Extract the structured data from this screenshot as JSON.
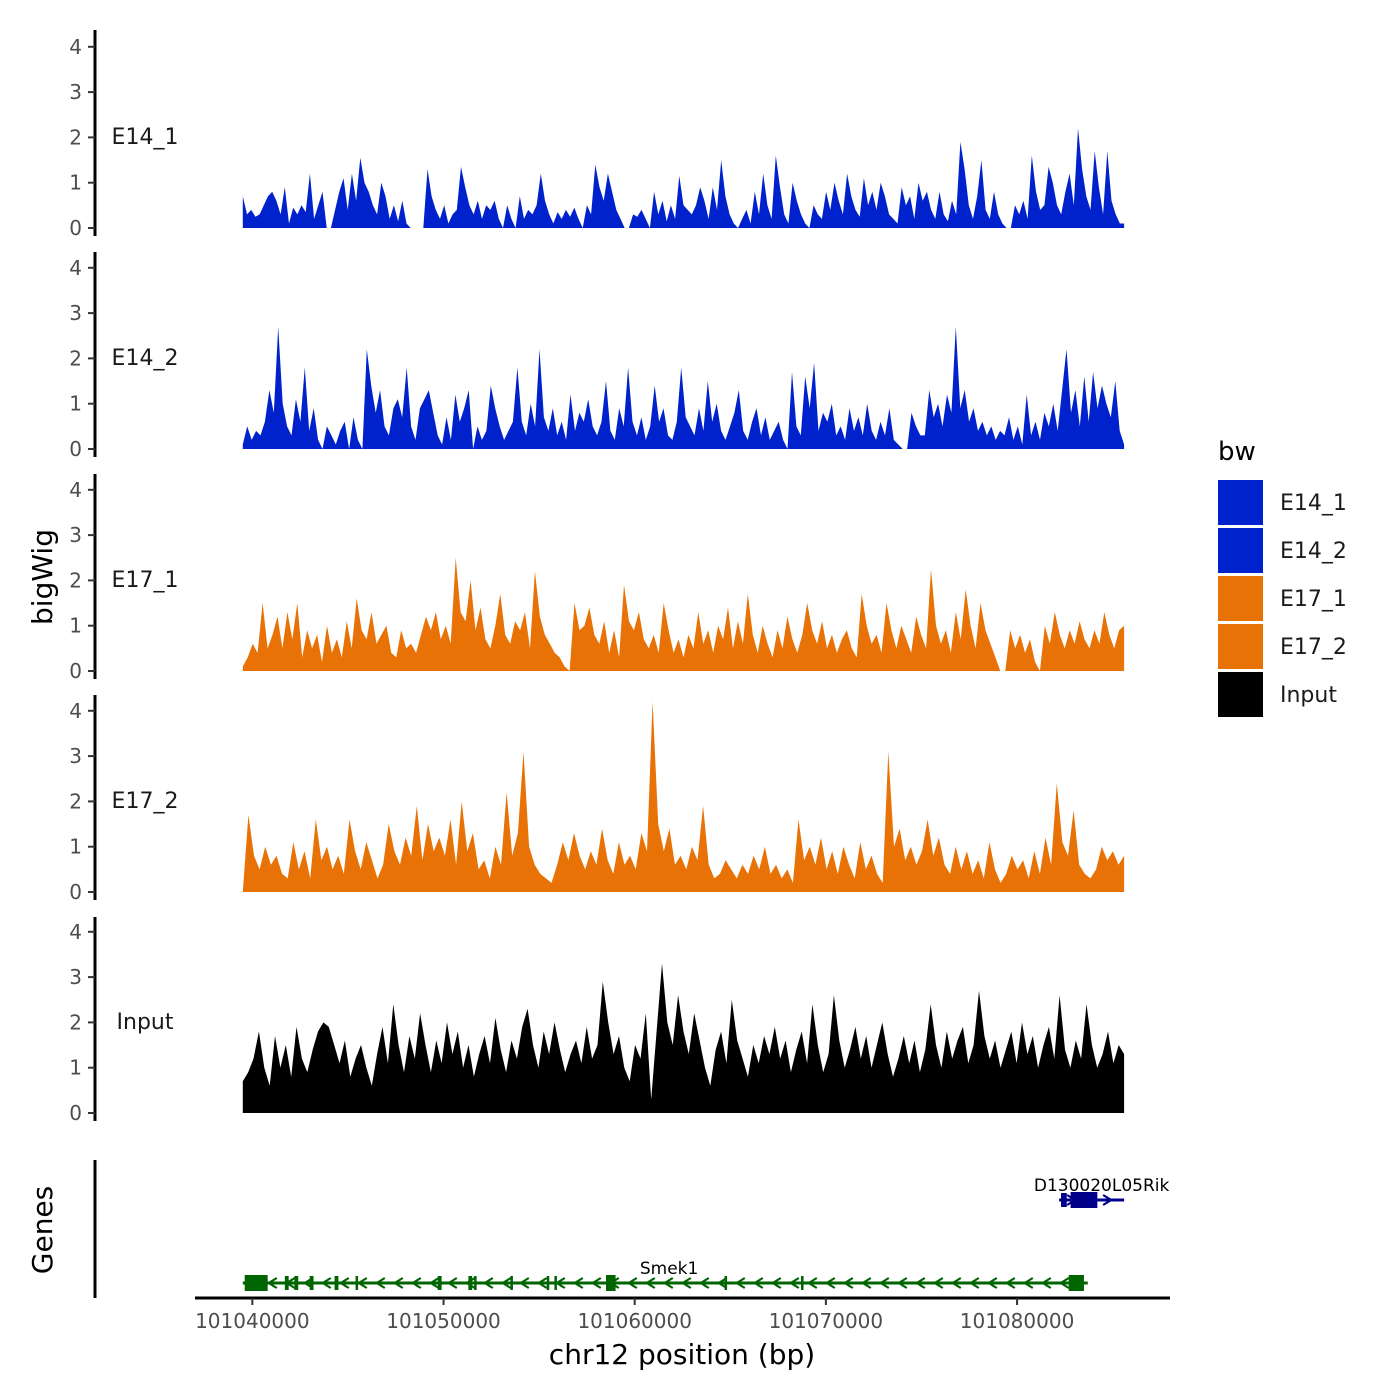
{
  "chart_data": {
    "type": "area",
    "title": "",
    "ylabel": "bigWig",
    "xlabel": "chr12 position (bp)",
    "genes_label": "Genes",
    "xlim": [
      101037000,
      101088000
    ],
    "data_range": [
      101039500,
      101085600
    ],
    "ylim": [
      0,
      4.2
    ],
    "y_ticks": [
      "0",
      "1",
      "2",
      "3",
      "4"
    ],
    "x_ticks": [
      {
        "value": 101040000,
        "label": "101040000"
      },
      {
        "value": 101050000,
        "label": "101050000"
      },
      {
        "value": 101060000,
        "label": "101060000"
      },
      {
        "value": 101070000,
        "label": "101070000"
      },
      {
        "value": 101080000,
        "label": "101080000"
      }
    ],
    "legend": {
      "title": "bw",
      "entries": [
        {
          "label": "E14_1",
          "color": "#0022cc"
        },
        {
          "label": "E14_2",
          "color": "#0022cc"
        },
        {
          "label": "E17_1",
          "color": "#e87205"
        },
        {
          "label": "E17_2",
          "color": "#e87205"
        },
        {
          "label": "Input",
          "color": "#000000"
        }
      ]
    },
    "series": [
      {
        "name": "E14_1",
        "color": "#0022cc",
        "values": [
          0.7,
          0.3,
          0.4,
          0.25,
          0.3,
          0.5,
          0.7,
          0.8,
          0.6,
          0.3,
          0.9,
          0.1,
          0.45,
          0.3,
          0.5,
          0.35,
          1.2,
          0.2,
          0.5,
          0.8,
          0,
          0,
          0.4,
          0.8,
          1.1,
          0.4,
          1.2,
          0.6,
          1.55,
          1.0,
          0.8,
          0.5,
          0.3,
          1.0,
          0.7,
          0.2,
          0.5,
          0.15,
          0.6,
          0.1,
          0,
          0,
          0,
          0,
          1.3,
          0.7,
          0.4,
          0.2,
          0.5,
          0.1,
          0.3,
          0.4,
          1.35,
          0.9,
          0.5,
          0.3,
          0.6,
          0.2,
          0.5,
          0.4,
          0.6,
          0.2,
          0,
          0.5,
          0.2,
          0,
          0.7,
          0.2,
          0.4,
          0.3,
          0.5,
          1.2,
          0.6,
          0.3,
          0.1,
          0.35,
          0.2,
          0.4,
          0.25,
          0.45,
          0.2,
          0,
          0.5,
          0.3,
          1.4,
          0.9,
          0.6,
          1.2,
          0.8,
          0.4,
          0.2,
          0,
          0,
          0.3,
          0.25,
          0.4,
          0.2,
          0,
          0.8,
          0.3,
          0.6,
          0.15,
          0.5,
          0.2,
          1.15,
          0.5,
          0.4,
          0.3,
          0.5,
          0.9,
          0.6,
          0.2,
          0.9,
          0.4,
          1.5,
          0.7,
          0.3,
          0.1,
          0,
          0.2,
          0.4,
          0.1,
          0.8,
          0.3,
          1.2,
          0.5,
          0.2,
          1.6,
          0.9,
          0.3,
          0.1,
          1.0,
          0.6,
          0.3,
          0.1,
          0,
          0.5,
          0.3,
          0.2,
          0.8,
          0.4,
          1.0,
          0.6,
          0.3,
          1.2,
          0.7,
          0.4,
          0.25,
          1.1,
          0.5,
          0.8,
          0.4,
          1.0,
          0.7,
          0.3,
          0.2,
          0.1,
          0.9,
          0.5,
          0.7,
          0.2,
          1.0,
          0.6,
          0.8,
          0.4,
          0.2,
          0.8,
          0.3,
          0.15,
          0.6,
          0.3,
          1.9,
          1.3,
          0.5,
          0.2,
          0.7,
          1.5,
          0.4,
          0.2,
          0.8,
          0.3,
          0.1,
          0,
          0,
          0.5,
          0.3,
          0.6,
          0.2,
          1.6,
          0.8,
          0.4,
          0.5,
          1.35,
          1.0,
          0.5,
          0.3,
          0.8,
          1.2,
          0.5,
          2.2,
          1.3,
          0.7,
          0.4,
          1.7,
          0.9,
          0.3,
          1.7,
          0.6,
          0.3,
          0.1,
          0.1
        ]
      },
      {
        "name": "E14_2",
        "color": "#0022cc",
        "values": [
          0.1,
          0.5,
          0.2,
          0.4,
          0.3,
          0.6,
          1.3,
          0.8,
          2.7,
          1.0,
          0.5,
          0.3,
          1.1,
          0.6,
          1.8,
          0.4,
          0.9,
          0.2,
          0,
          0.5,
          0.3,
          0.1,
          0.4,
          0.6,
          0,
          0.7,
          0.2,
          0,
          2.2,
          1.4,
          0.8,
          1.3,
          0.5,
          0.3,
          0.9,
          1.1,
          0.7,
          1.8,
          0.5,
          0.2,
          0.9,
          1.1,
          1.3,
          0.8,
          0.3,
          0.1,
          0.7,
          0.2,
          1.2,
          0.6,
          0.9,
          1.3,
          0,
          0.5,
          0.2,
          0.4,
          1.4,
          0.9,
          0.5,
          0.2,
          0.4,
          0.6,
          1.8,
          0.6,
          0.3,
          1.0,
          0.5,
          2.2,
          0.7,
          0.4,
          0.9,
          0.3,
          0.6,
          0.2,
          1.2,
          0.4,
          0.8,
          0.6,
          1.1,
          0.5,
          0.3,
          0.6,
          1.5,
          0.4,
          0.2,
          0.9,
          0.5,
          1.8,
          0.6,
          0.3,
          0.7,
          0.2,
          0.5,
          1.4,
          0.6,
          0.9,
          0.3,
          0.2,
          0.6,
          1.8,
          0.7,
          0.5,
          0.3,
          0.9,
          0.4,
          1.5,
          0.6,
          1.0,
          0.4,
          0.2,
          0.5,
          0.8,
          1.3,
          0.4,
          0.2,
          0.6,
          0.9,
          0.3,
          0.7,
          0.2,
          0.4,
          0.6,
          0.2,
          0,
          1.7,
          0.5,
          0.3,
          1.6,
          0.9,
          1.9,
          0.4,
          0.8,
          0.6,
          1.0,
          0.3,
          0.5,
          0.2,
          0.9,
          0.4,
          0.7,
          0.3,
          1.0,
          0.4,
          0.2,
          0.6,
          0.3,
          0.9,
          0.2,
          0.1,
          0,
          0,
          0.8,
          0.5,
          0.3,
          0.3,
          1.3,
          0.7,
          1.0,
          0.5,
          1.2,
          0.8,
          2.7,
          0.9,
          1.3,
          0.6,
          0.9,
          0.4,
          0.6,
          0.3,
          0.5,
          0.2,
          0.4,
          0.3,
          0.7,
          0.2,
          0.5,
          0.1,
          1.2,
          0.3,
          0.6,
          0.2,
          0.8,
          0.5,
          1.0,
          0.4,
          1.3,
          2.2,
          0.8,
          1.3,
          0.5,
          1.6,
          0.6,
          1.7,
          0.9,
          1.4,
          1.0,
          0.7,
          1.5,
          0.4,
          0.1
        ]
      },
      {
        "name": "E17_1",
        "color": "#e87205",
        "values": [
          0.1,
          0.3,
          0.6,
          0.4,
          1.5,
          0.5,
          0.8,
          1.2,
          0.5,
          1.3,
          0.7,
          1.5,
          0.3,
          0.9,
          0.5,
          0.8,
          0.2,
          1.0,
          0.4,
          0.7,
          0.3,
          1.1,
          0.5,
          1.6,
          0.9,
          0.7,
          1.3,
          0.6,
          0.8,
          1.0,
          0.4,
          0.3,
          0.9,
          0.5,
          0.6,
          0.4,
          0.8,
          1.2,
          0.9,
          1.3,
          0.7,
          1.0,
          0.6,
          2.5,
          1.3,
          1.1,
          2.0,
          0.9,
          1.4,
          0.7,
          0.5,
          1.0,
          1.7,
          0.8,
          0.6,
          1.1,
          0.9,
          1.3,
          0.5,
          2.2,
          1.2,
          0.8,
          0.6,
          0.4,
          0.3,
          0.1,
          0,
          1.5,
          0.9,
          1.0,
          1.4,
          0.8,
          0.6,
          1.1,
          0.4,
          0.9,
          0.3,
          1.9,
          1.1,
          0.9,
          1.3,
          0.7,
          0.5,
          0.8,
          0.4,
          1.5,
          0.9,
          0.4,
          0.7,
          0.3,
          0.8,
          0.5,
          1.3,
          0.6,
          0.9,
          0.4,
          1.0,
          0.7,
          1.4,
          0.5,
          1.1,
          0.6,
          1.7,
          0.8,
          0.4,
          1.0,
          0.6,
          0.3,
          0.9,
          0.5,
          1.2,
          0.7,
          0.4,
          0.8,
          1.5,
          0.9,
          0.6,
          1.1,
          0.5,
          0.8,
          0.4,
          0.7,
          0.9,
          0.5,
          0.3,
          1.7,
          1.0,
          0.6,
          0.8,
          0.4,
          1.5,
          0.9,
          0.5,
          1.0,
          0.7,
          0.4,
          1.2,
          0.8,
          0.5,
          2.25,
          1.0,
          0.6,
          0.9,
          0.4,
          1.3,
          0.7,
          1.8,
          1.0,
          0.5,
          1.5,
          0.9,
          0.6,
          0.3,
          0,
          0,
          0.9,
          0.5,
          0.8,
          0.4,
          0.7,
          0.2,
          0,
          1.0,
          0.6,
          1.3,
          0.8,
          0.5,
          0.9,
          0.6,
          1.1,
          0.7,
          0.5,
          0.9,
          0.6,
          1.3,
          0.8,
          0.5,
          0.9,
          1.0
        ]
      },
      {
        "name": "E17_2",
        "color": "#e87205",
        "values": [
          0,
          1.7,
          0.8,
          0.5,
          1.0,
          0.6,
          0.8,
          0.4,
          0.3,
          1.1,
          0.5,
          0.9,
          0.3,
          1.6,
          0.7,
          1.0,
          0.5,
          0.8,
          0.4,
          1.6,
          0.9,
          0.5,
          1.1,
          0.7,
          0.3,
          0.6,
          1.5,
          0.9,
          0.6,
          1.2,
          0.8,
          1.9,
          0.7,
          1.5,
          0.9,
          1.2,
          0.8,
          1.6,
          0.6,
          2.0,
          0.9,
          1.3,
          0.5,
          0.7,
          0.3,
          1.0,
          0.6,
          2.2,
          0.8,
          1.3,
          3.1,
          1.0,
          0.6,
          0.4,
          0.3,
          0.2,
          0.6,
          1.1,
          0.7,
          1.3,
          0.8,
          0.5,
          0.9,
          0.6,
          1.4,
          0.7,
          0.4,
          1.1,
          0.6,
          0.8,
          0.5,
          1.3,
          0.9,
          4.2,
          1.5,
          0.9,
          1.4,
          0.6,
          0.8,
          0.5,
          1.0,
          0.7,
          1.9,
          0.6,
          0.3,
          0.4,
          0.7,
          0.5,
          0.3,
          0.6,
          0.4,
          0.8,
          0.5,
          1.0,
          0.4,
          0.6,
          0.3,
          0.5,
          0.2,
          1.6,
          0.7,
          1.0,
          0.6,
          1.2,
          0.5,
          0.9,
          0.4,
          1.0,
          0.6,
          0.3,
          1.1,
          0.5,
          0.8,
          0.4,
          0.2,
          3.1,
          1.0,
          1.4,
          0.7,
          1.0,
          0.6,
          0.9,
          1.6,
          0.8,
          1.2,
          0.6,
          0.4,
          1.0,
          0.5,
          0.9,
          0.4,
          0.7,
          0.3,
          1.1,
          0.5,
          0.2,
          0.4,
          0.8,
          0.5,
          0.7,
          0.3,
          0.9,
          0.4,
          1.2,
          0.6,
          2.4,
          1.1,
          0.8,
          1.8,
          0.6,
          0.4,
          0.3,
          0.5,
          1.0,
          0.7,
          0.9,
          0.6,
          0.8
        ]
      },
      {
        "name": "Input",
        "color": "#000000",
        "values": [
          0.7,
          0.9,
          1.2,
          1.8,
          1.0,
          0.6,
          1.7,
          1.0,
          1.5,
          0.8,
          1.9,
          1.2,
          0.9,
          1.4,
          1.8,
          2.0,
          1.9,
          1.5,
          1.1,
          1.6,
          0.8,
          1.2,
          1.5,
          1.0,
          0.6,
          1.3,
          1.9,
          1.1,
          2.4,
          1.5,
          0.9,
          1.7,
          1.2,
          2.2,
          1.5,
          0.9,
          1.6,
          1.1,
          2.0,
          1.3,
          1.8,
          1.0,
          1.5,
          0.8,
          1.3,
          1.7,
          1.1,
          2.1,
          1.4,
          0.9,
          1.6,
          1.2,
          1.9,
          2.3,
          1.5,
          1.0,
          1.8,
          1.3,
          2.0,
          1.4,
          0.9,
          1.3,
          1.6,
          1.1,
          1.9,
          1.2,
          1.5,
          2.9,
          2.0,
          1.3,
          1.7,
          1.0,
          0.7,
          1.5,
          1.2,
          2.2,
          0.3,
          1.8,
          3.3,
          2.0,
          1.5,
          2.6,
          1.8,
          1.3,
          2.2,
          1.6,
          1.0,
          0.6,
          1.4,
          1.8,
          1.1,
          2.5,
          1.6,
          1.2,
          0.8,
          1.5,
          1.1,
          1.7,
          1.3,
          1.9,
          1.2,
          1.6,
          0.9,
          1.4,
          1.8,
          1.1,
          2.4,
          1.5,
          0.9,
          1.3,
          2.6,
          1.6,
          1.0,
          1.4,
          1.9,
          1.2,
          1.7,
          1.0,
          1.5,
          2.0,
          1.3,
          0.8,
          1.2,
          1.7,
          1.1,
          1.6,
          0.9,
          1.4,
          2.4,
          1.5,
          1.0,
          1.8,
          1.2,
          1.6,
          1.9,
          1.1,
          1.5,
          2.7,
          1.7,
          1.2,
          1.6,
          1.0,
          1.4,
          1.8,
          1.1,
          2.0,
          1.3,
          1.7,
          1.0,
          1.5,
          1.9,
          1.2,
          2.6,
          1.4,
          1.0,
          1.6,
          1.2,
          2.4,
          1.5,
          1.0,
          1.3,
          1.8,
          1.1,
          1.5,
          1.3
        ]
      }
    ],
    "genes": [
      {
        "name": "Smek1",
        "strand": "-",
        "color": "#006400",
        "row": 0,
        "start": 101039500,
        "end": 101083700,
        "exons": [
          [
            101039600,
            101040800
          ],
          [
            101041700,
            101041900
          ],
          [
            101042200,
            101042400
          ],
          [
            101043000,
            101043200
          ],
          [
            101044300,
            101044500
          ],
          [
            101045400,
            101045500
          ],
          [
            101049700,
            101049900
          ],
          [
            101051300,
            101051500
          ],
          [
            101051600,
            101051700
          ],
          [
            101053500,
            101053600
          ],
          [
            101055400,
            101055500
          ],
          [
            101055800,
            101055900
          ],
          [
            101058500,
            101059000
          ],
          [
            101064700,
            101064800
          ],
          [
            101068700,
            101068800
          ],
          [
            101082700,
            101083500
          ]
        ]
      },
      {
        "name": "D130020L05Rik",
        "strand": "+",
        "color": "#00008b",
        "row": 1,
        "start": 101082200,
        "end": 101085600,
        "exons": [
          [
            101082300,
            101082600
          ],
          [
            101082800,
            101084200
          ]
        ]
      }
    ]
  }
}
